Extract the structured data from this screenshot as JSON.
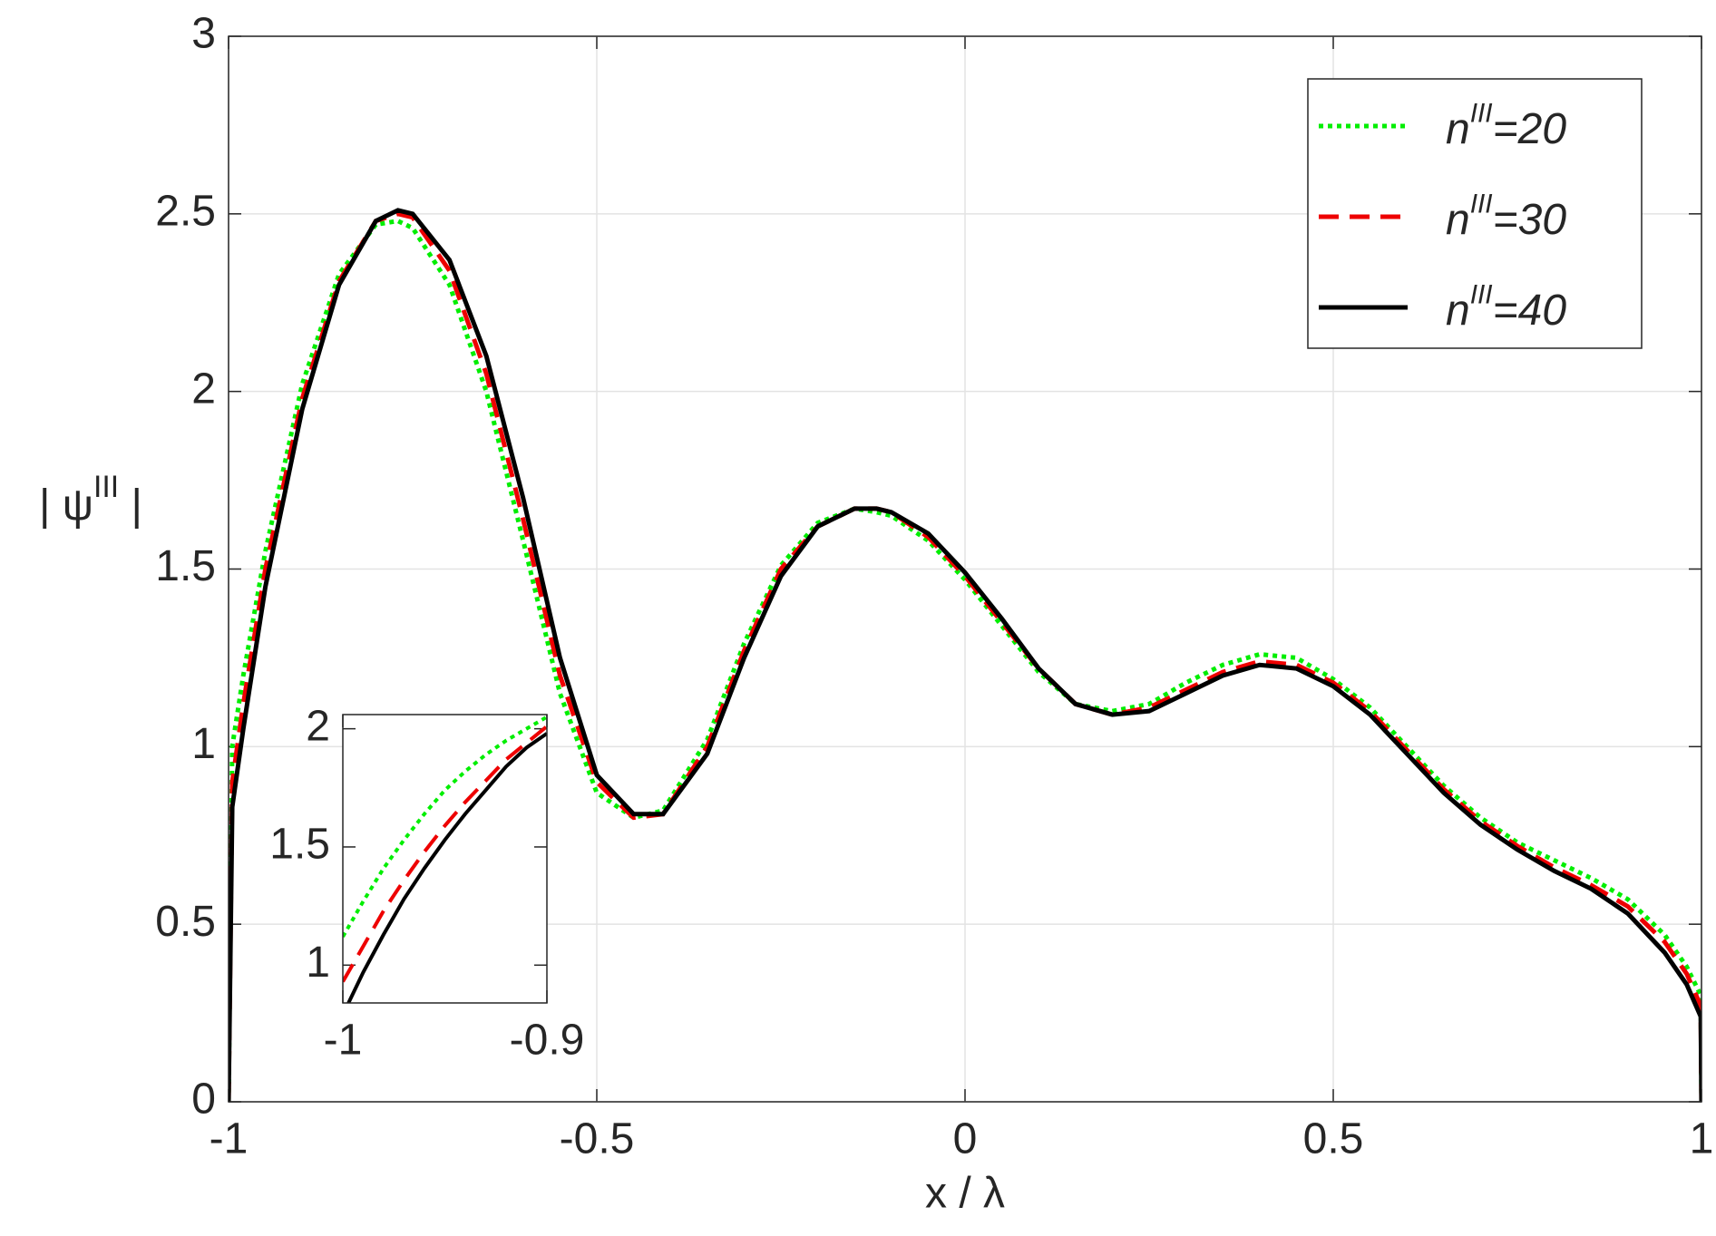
{
  "chart_data": [
    {
      "type": "line",
      "xlabel": "x / λ",
      "ylabel": "| ψIII |",
      "xlim": [
        -1,
        1
      ],
      "ylim": [
        0,
        3
      ],
      "xticks": [
        -1,
        -0.5,
        0,
        0.5,
        1
      ],
      "yticks": [
        0,
        0.5,
        1,
        1.5,
        2,
        2.5,
        3
      ],
      "grid": true,
      "legend": "upper right",
      "x": [
        -1,
        -0.995,
        -0.98,
        -0.95,
        -0.9,
        -0.85,
        -0.8,
        -0.77,
        -0.75,
        -0.7,
        -0.65,
        -0.6,
        -0.55,
        -0.5,
        -0.45,
        -0.41,
        -0.35,
        -0.3,
        -0.25,
        -0.2,
        -0.15,
        -0.12,
        -0.1,
        -0.05,
        0,
        0.05,
        0.1,
        0.15,
        0.2,
        0.25,
        0.3,
        0.35,
        0.4,
        0.45,
        0.5,
        0.55,
        0.6,
        0.65,
        0.7,
        0.75,
        0.8,
        0.85,
        0.9,
        0.95,
        0.98,
        0.999,
        1
      ],
      "series": [
        {
          "name": "nIII=20",
          "color": "#00ee00",
          "style": "dotted",
          "values": [
            0,
            1.0,
            1.2,
            1.55,
            2.02,
            2.33,
            2.47,
            2.48,
            2.46,
            2.3,
            2.0,
            1.58,
            1.15,
            0.87,
            0.8,
            0.82,
            1.02,
            1.29,
            1.51,
            1.63,
            1.67,
            1.66,
            1.65,
            1.58,
            1.47,
            1.34,
            1.21,
            1.12,
            1.1,
            1.12,
            1.18,
            1.23,
            1.26,
            1.25,
            1.19,
            1.11,
            1.0,
            0.89,
            0.8,
            0.73,
            0.68,
            0.63,
            0.57,
            0.47,
            0.38,
            0.3,
            0
          ]
        },
        {
          "name": "nIII=30",
          "color": "#ee0000",
          "style": "dashed",
          "values": [
            0,
            0.9,
            1.12,
            1.5,
            1.98,
            2.31,
            2.48,
            2.5,
            2.49,
            2.34,
            2.05,
            1.64,
            1.2,
            0.9,
            0.8,
            0.81,
            1.0,
            1.27,
            1.5,
            1.62,
            1.67,
            1.67,
            1.66,
            1.59,
            1.48,
            1.35,
            1.22,
            1.12,
            1.09,
            1.11,
            1.16,
            1.21,
            1.24,
            1.23,
            1.18,
            1.1,
            0.99,
            0.88,
            0.79,
            0.72,
            0.66,
            0.61,
            0.55,
            0.45,
            0.36,
            0.27,
            0
          ]
        },
        {
          "name": "nIII=40",
          "color": "#000000",
          "style": "solid",
          "values": [
            0,
            0.83,
            1.05,
            1.45,
            1.95,
            2.3,
            2.48,
            2.51,
            2.5,
            2.37,
            2.1,
            1.7,
            1.25,
            0.92,
            0.81,
            0.81,
            0.98,
            1.25,
            1.48,
            1.62,
            1.67,
            1.67,
            1.66,
            1.6,
            1.49,
            1.36,
            1.22,
            1.12,
            1.09,
            1.1,
            1.15,
            1.2,
            1.23,
            1.22,
            1.17,
            1.09,
            0.98,
            0.87,
            0.78,
            0.71,
            0.65,
            0.6,
            0.53,
            0.42,
            0.33,
            0.24,
            0
          ]
        }
      ]
    },
    {
      "type": "line",
      "xlim": [
        -1,
        -0.9
      ],
      "ylim": [
        0.84,
        2.06
      ],
      "xticks": [
        -1,
        -0.9
      ],
      "yticks": [
        1,
        1.5,
        2
      ],
      "x": [
        -1,
        -0.99,
        -0.98,
        -0.97,
        -0.96,
        -0.95,
        -0.94,
        -0.93,
        -0.92,
        -0.91,
        -0.9
      ],
      "series": [
        {
          "color": "#00ee00",
          "style": "dotted",
          "values": [
            1.12,
            1.27,
            1.41,
            1.53,
            1.64,
            1.74,
            1.82,
            1.89,
            1.95,
            2.0,
            2.05
          ]
        },
        {
          "color": "#ee0000",
          "style": "dashed",
          "values": [
            0.93,
            1.08,
            1.23,
            1.36,
            1.48,
            1.59,
            1.69,
            1.78,
            1.87,
            1.94,
            2.01
          ]
        },
        {
          "color": "#000000",
          "style": "solid",
          "values": [
            0.79,
            0.97,
            1.13,
            1.28,
            1.41,
            1.53,
            1.64,
            1.74,
            1.84,
            1.92,
            1.98
          ]
        }
      ]
    }
  ]
}
